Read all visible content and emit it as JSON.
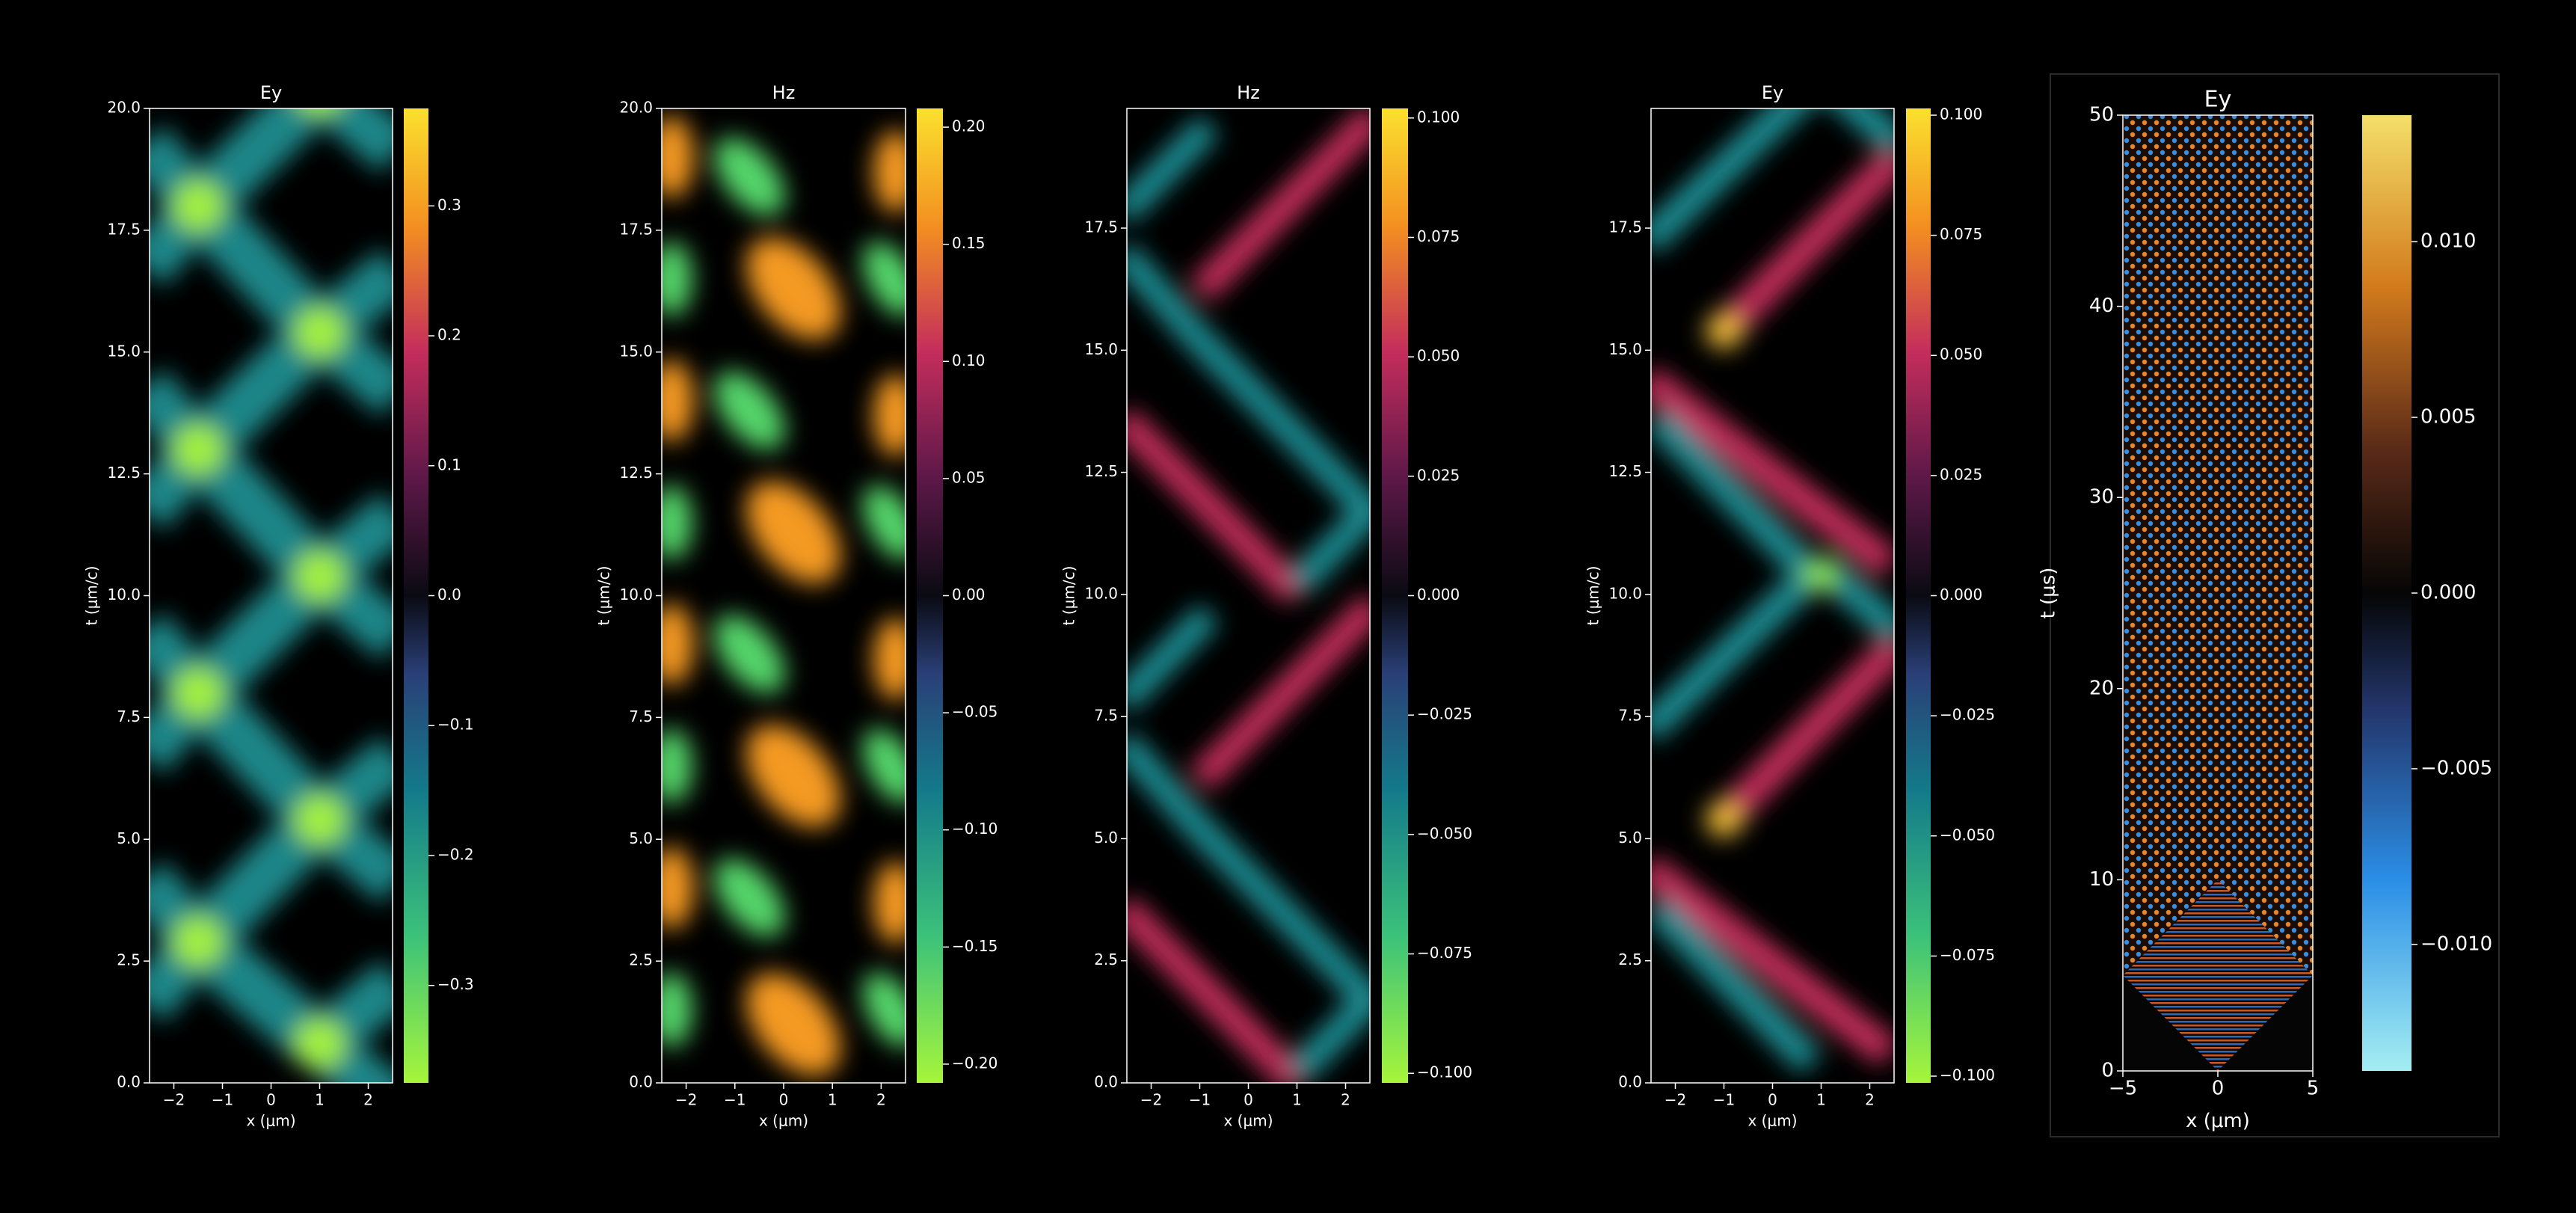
{
  "chart_data": [
    {
      "type": "heatmap",
      "title": "Ey",
      "xlabel": "x (μm)",
      "ylabel": "t (μm/c)",
      "xlim": [
        -2.5,
        2.5
      ],
      "xticks": [
        {
          "value": -2,
          "label": "−2"
        },
        {
          "value": -1,
          "label": "−1"
        },
        0,
        1,
        2
      ],
      "ylim": [
        0,
        20
      ],
      "yticks": [
        {
          "value": 0,
          "label": "0.0"
        },
        2.5,
        {
          "value": 5,
          "label": "5.0"
        },
        7.5,
        {
          "value": 10,
          "label": "10.0"
        },
        12.5,
        {
          "value": 15,
          "label": "15.0"
        },
        17.5,
        {
          "value": 20,
          "label": "20.0"
        }
      ],
      "clim": [
        -0.375,
        0.375
      ],
      "cticks": [
        {
          "value": -0.3,
          "label": "−0.3"
        },
        {
          "value": -0.2,
          "label": "−0.2"
        },
        {
          "value": -0.1,
          "label": "−0.1"
        },
        {
          "value": 0,
          "label": "0.0"
        },
        0.1,
        0.2,
        0.3
      ]
    },
    {
      "type": "heatmap",
      "title": "Hz",
      "xlabel": "x (μm)",
      "ylabel": "t (μm/c)",
      "xlim": [
        -2.5,
        2.5
      ],
      "xticks": [
        {
          "value": -2,
          "label": "−2"
        },
        {
          "value": -1,
          "label": "−1"
        },
        0,
        1,
        2
      ],
      "ylim": [
        0,
        20
      ],
      "yticks": [
        {
          "value": 0,
          "label": "0.0"
        },
        2.5,
        {
          "value": 5,
          "label": "5.0"
        },
        7.5,
        {
          "value": 10,
          "label": "10.0"
        },
        12.5,
        {
          "value": 15,
          "label": "15.0"
        },
        17.5,
        {
          "value": 20,
          "label": "20.0"
        }
      ],
      "clim": [
        -0.208,
        0.208
      ],
      "cticks": [
        {
          "value": -0.2,
          "label": "−0.20"
        },
        {
          "value": -0.15,
          "label": "−0.15"
        },
        {
          "value": -0.1,
          "label": "−0.10"
        },
        {
          "value": -0.05,
          "label": "−0.05"
        },
        {
          "value": 0,
          "label": "0.00"
        },
        0.05,
        {
          "value": 0.1,
          "label": "0.10"
        },
        0.15,
        {
          "value": 0.2,
          "label": "0.20"
        }
      ]
    },
    {
      "type": "heatmap",
      "title": "Hz",
      "xlabel": "x (μm)",
      "ylabel": "t (μm/c)",
      "xlim": [
        -2.5,
        2.5
      ],
      "xticks": [
        {
          "value": -2,
          "label": "−2"
        },
        {
          "value": -1,
          "label": "−1"
        },
        0,
        1,
        2
      ],
      "ylim": [
        0,
        19.95
      ],
      "yticks": [
        {
          "value": 0,
          "label": "0.0"
        },
        2.5,
        {
          "value": 5,
          "label": "5.0"
        },
        7.5,
        {
          "value": 10,
          "label": "10.0"
        },
        12.5,
        {
          "value": 15,
          "label": "15.0"
        },
        17.5
      ],
      "clim": [
        -0.102,
        0.102
      ],
      "cticks": [
        {
          "value": -0.1,
          "label": "−0.100"
        },
        {
          "value": -0.075,
          "label": "−0.075"
        },
        {
          "value": -0.05,
          "label": "−0.050"
        },
        {
          "value": -0.025,
          "label": "−0.025"
        },
        {
          "value": 0,
          "label": "0.000"
        },
        0.025,
        {
          "value": 0.05,
          "label": "0.050"
        },
        0.075,
        {
          "value": 0.1,
          "label": "0.100"
        }
      ]
    },
    {
      "type": "heatmap",
      "title": "Ey",
      "xlabel": "x (μm)",
      "ylabel": "t (μm/c)",
      "xlim": [
        -2.5,
        2.5
      ],
      "xticks": [
        {
          "value": -2,
          "label": "−2"
        },
        {
          "value": -1,
          "label": "−1"
        },
        0,
        1,
        2
      ],
      "ylim": [
        0,
        19.95
      ],
      "yticks": [
        {
          "value": 0,
          "label": "0.0"
        },
        2.5,
        {
          "value": 5,
          "label": "5.0"
        },
        7.5,
        {
          "value": 10,
          "label": "10.0"
        },
        12.5,
        {
          "value": 15,
          "label": "15.0"
        },
        17.5
      ],
      "clim": [
        -0.1014,
        0.1014
      ],
      "cticks": [
        {
          "value": -0.1,
          "label": "−0.100"
        },
        {
          "value": -0.075,
          "label": "−0.075"
        },
        {
          "value": -0.05,
          "label": "−0.050"
        },
        {
          "value": -0.025,
          "label": "−0.025"
        },
        {
          "value": 0,
          "label": "0.000"
        },
        0.025,
        {
          "value": 0.05,
          "label": "0.050"
        },
        0.075,
        {
          "value": 0.1,
          "label": "0.100"
        }
      ]
    },
    {
      "type": "heatmap",
      "title": "Ey",
      "xlabel": "x (μm)",
      "ylabel": "t (μs)",
      "xlim": [
        -5,
        5
      ],
      "xticks": [
        {
          "value": -5,
          "label": "−5"
        },
        0,
        5
      ],
      "ylim": [
        0,
        50
      ],
      "yticks": [
        0,
        10,
        20,
        30,
        40,
        50
      ],
      "clim": [
        -0.0136,
        0.0136
      ],
      "cticks": [
        {
          "value": -0.01,
          "label": "−0.010"
        },
        {
          "value": -0.005,
          "label": "−0.005"
        },
        {
          "value": 0,
          "label": "0.000"
        },
        0.005,
        {
          "value": 0.01,
          "label": "0.010"
        }
      ]
    }
  ]
}
